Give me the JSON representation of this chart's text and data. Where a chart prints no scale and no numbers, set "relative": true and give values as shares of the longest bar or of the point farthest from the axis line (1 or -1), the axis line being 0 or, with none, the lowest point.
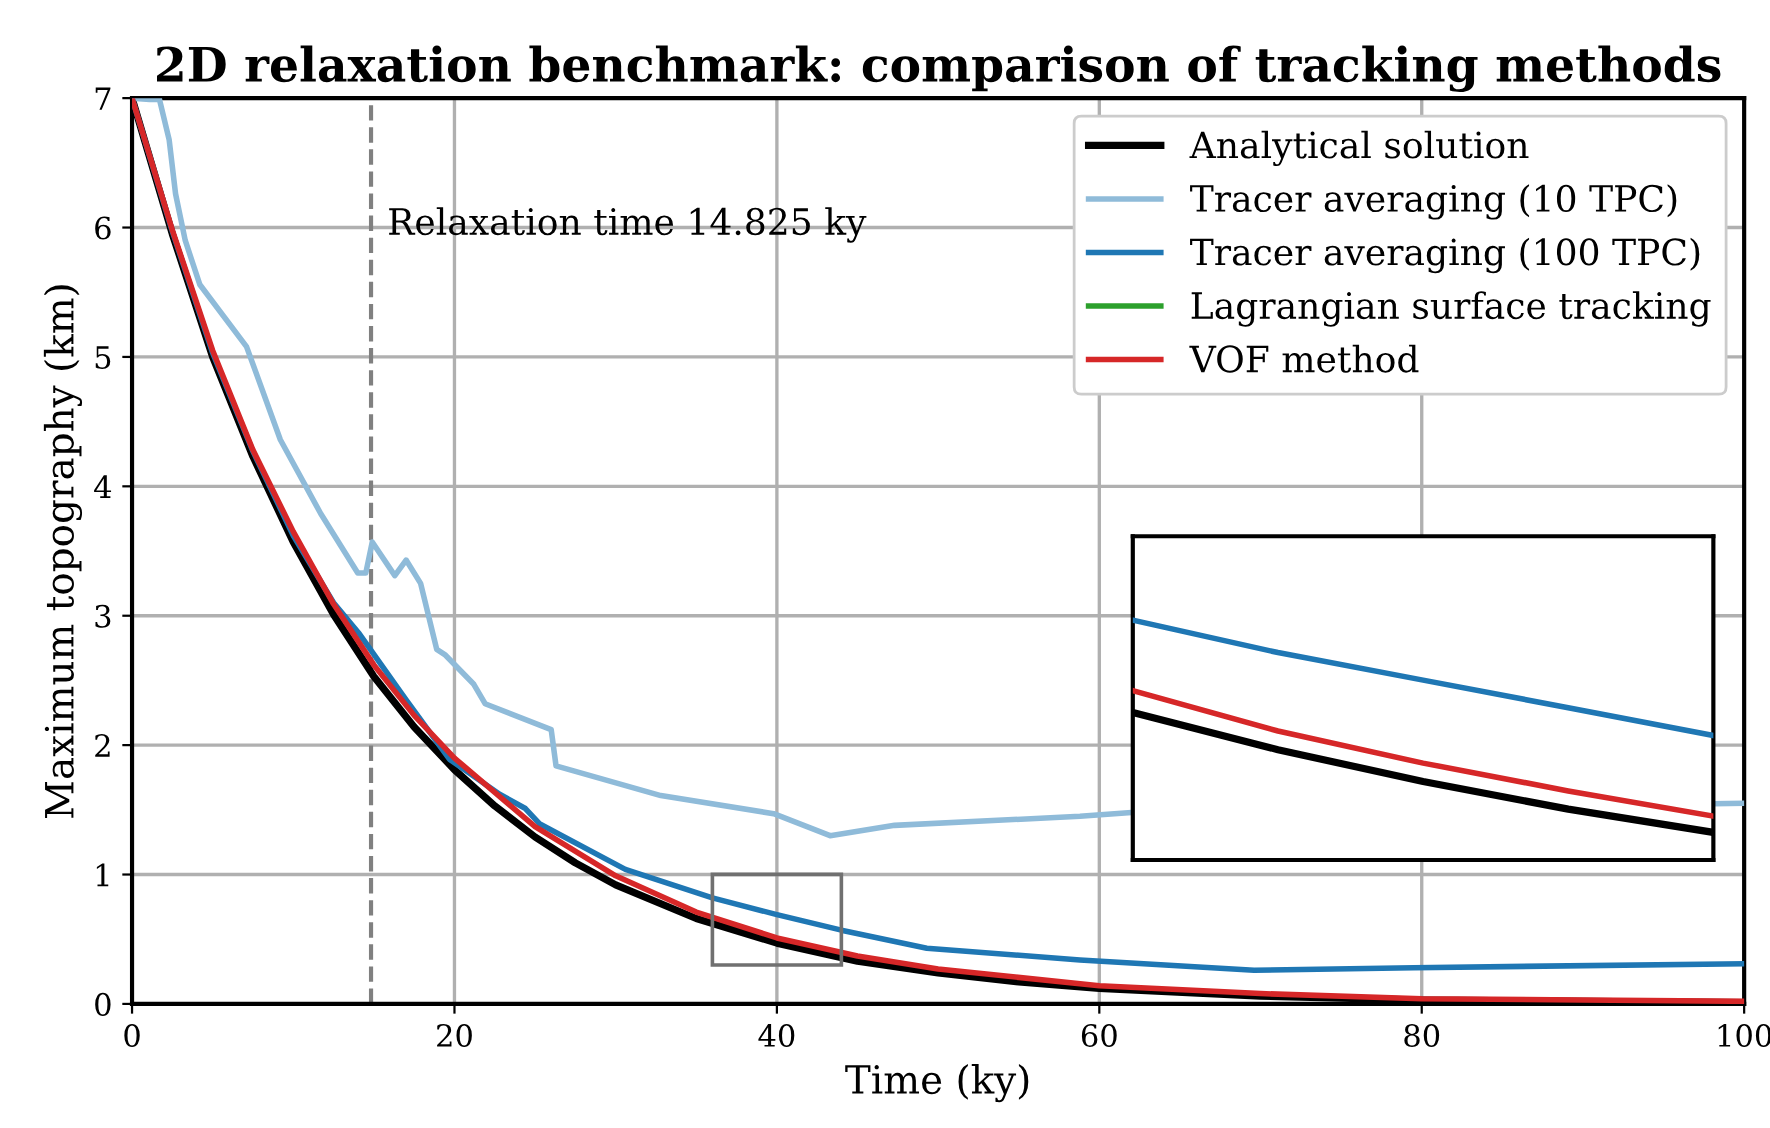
{
  "chart_data": [
    {
      "type": "line",
      "title": "2D relaxation benchmark: comparison of tracking methods",
      "xlabel": "Time (ky)",
      "ylabel": "Maximum topography (km)",
      "xlim": [
        0,
        100
      ],
      "ylim": [
        0,
        7
      ],
      "xticks": [
        0,
        20,
        40,
        60,
        80,
        100
      ],
      "yticks": [
        0,
        1,
        2,
        3,
        4,
        5,
        6,
        7
      ],
      "grid": true,
      "legend": "top right",
      "line_style": "solid",
      "ref_lines": [
        {
          "axis": "x",
          "value": 14.825,
          "label": "Relaxation time 14.825 ky",
          "color": "#808080",
          "line_style": "dashed"
        }
      ],
      "series": [
        {
          "name": "Analytical solution",
          "color": "#000000",
          "x": [
            0,
            2.5,
            5,
            7.5,
            10,
            12.5,
            15,
            17.5,
            20,
            22.5,
            25,
            27.5,
            30,
            35,
            40,
            45,
            50,
            55,
            60,
            70,
            80,
            90,
            100
          ],
          "values": [
            7.0,
            5.95,
            5.0,
            4.23,
            3.57,
            3.01,
            2.53,
            2.14,
            1.81,
            1.53,
            1.29,
            1.09,
            0.92,
            0.66,
            0.47,
            0.33,
            0.24,
            0.17,
            0.12,
            0.06,
            0.03,
            0.02,
            0.01
          ]
        },
        {
          "name": "Tracer averaging (10 TPC)",
          "color": "#8fbbd9",
          "x": [
            0,
            1.1,
            1.7,
            2.3,
            2.7,
            3.3,
            4.2,
            7.1,
            9.2,
            11.7,
            14.0,
            14.5,
            14.9,
            16.3,
            17.0,
            17.9,
            18.9,
            19.4,
            21.2,
            21.9,
            26.0,
            26.3,
            32.8,
            39.8,
            43.3,
            47.3,
            58.8,
            62,
            100
          ],
          "values": [
            7.0,
            6.99,
            6.99,
            6.68,
            6.26,
            5.9,
            5.56,
            5.08,
            4.36,
            3.79,
            3.33,
            3.33,
            3.57,
            3.31,
            3.43,
            3.25,
            2.74,
            2.7,
            2.47,
            2.32,
            2.12,
            1.84,
            1.61,
            1.47,
            1.3,
            1.38,
            1.45,
            1.48,
            1.55
          ]
        },
        {
          "name": "Tracer averaging (100 TPC)",
          "color": "#1f77b4",
          "x": [
            0,
            2.5,
            5,
            7.5,
            10,
            12.5,
            14.1,
            17,
            19.7,
            22.8,
            24.4,
            25.3,
            30.6,
            36,
            40,
            44,
            49.3,
            58.8,
            69.6,
            79.5,
            100
          ],
          "values": [
            7.0,
            5.97,
            5.03,
            4.27,
            3.62,
            3.1,
            2.86,
            2.35,
            1.89,
            1.62,
            1.51,
            1.39,
            1.04,
            0.82,
            0.69,
            0.57,
            0.43,
            0.34,
            0.26,
            0.28,
            0.31
          ]
        },
        {
          "name": "Lagrangian surface tracking",
          "color": "#2ca02c"
        },
        {
          "name": "VOF method",
          "color": "#d62728",
          "x": [
            0,
            2.5,
            5,
            7.5,
            10,
            12.5,
            15,
            17.5,
            20,
            25,
            30,
            35,
            40,
            45,
            50,
            60,
            70,
            80,
            90,
            100
          ],
          "values": [
            7.0,
            5.98,
            5.05,
            4.28,
            3.65,
            3.09,
            2.62,
            2.23,
            1.9,
            1.37,
            0.99,
            0.71,
            0.51,
            0.37,
            0.27,
            0.14,
            0.08,
            0.04,
            0.03,
            0.02
          ]
        }
      ]
    },
    {
      "type": "line",
      "relative": true,
      "categories": [
        null,
        null,
        null,
        null,
        null
      ],
      "line_style": "solid",
      "series": [
        {
          "color": "#000000",
          "values": [
            0.615,
            0.46,
            0.327,
            0.212,
            0.115
          ]
        },
        {
          "color": "#1f77b4",
          "values": [
            1.0,
            0.865,
            0.75,
            0.635,
            0.519
          ]
        },
        {
          "color": "#d62728",
          "values": [
            0.706,
            0.538,
            0.404,
            0.288,
            0.183
          ]
        }
      ]
    }
  ]
}
